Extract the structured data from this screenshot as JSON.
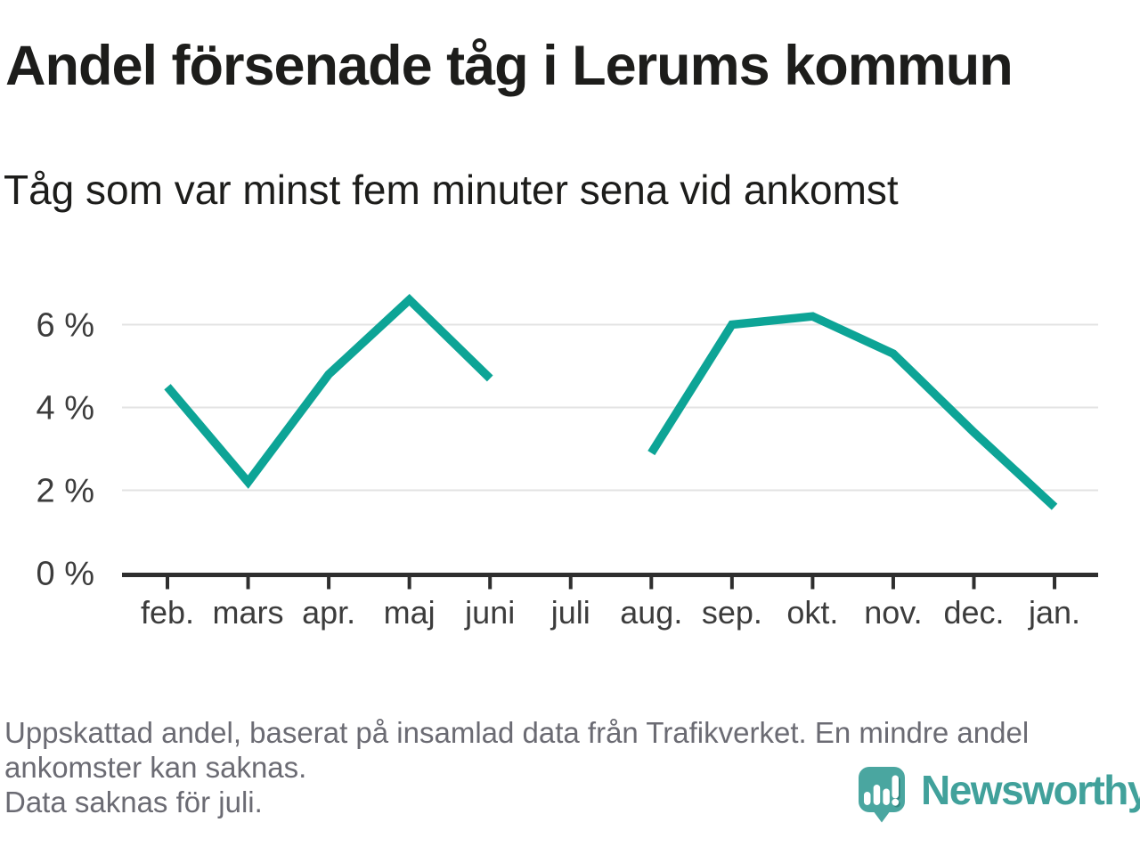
{
  "title": "Andel försenade tåg i Lerums kommun",
  "subtitle": "Tåg som var minst fem minuter sena vid ankomst",
  "chart_data": {
    "type": "line",
    "categories": [
      "feb.",
      "mars",
      "apr.",
      "maj",
      "juni",
      "juli",
      "aug.",
      "sep.",
      "okt.",
      "nov.",
      "dec.",
      "jan."
    ],
    "values": [
      4.5,
      2.2,
      4.8,
      6.6,
      4.7,
      null,
      2.9,
      6.0,
      6.2,
      5.3,
      3.4,
      1.6
    ],
    "unit": "%",
    "yticks": [
      0,
      2,
      4,
      6
    ],
    "ytick_labels": [
      "0 %",
      "2 %",
      "4 %",
      "6 %"
    ],
    "ylim": [
      0,
      7
    ],
    "grid": true,
    "legend_position": "none",
    "missing_data": "juli",
    "line_color": "#0da496",
    "gridline_color": "#e3e3e3",
    "axis_color": "#2e2e2e",
    "tick_label_color": "#3c3c3c"
  },
  "footer": {
    "lines": [
      "Uppskattad andel, baserat på insamlad data från Trafikverket. En mindre andel",
      "ankomster kan saknas.",
      "Data saknas för juli."
    ]
  },
  "branding": {
    "wordmark": "Newsworthy",
    "logo_color": "#4aa6a0",
    "logo_shadow_color": "#328680",
    "wordmark_color": "#41a19b"
  }
}
